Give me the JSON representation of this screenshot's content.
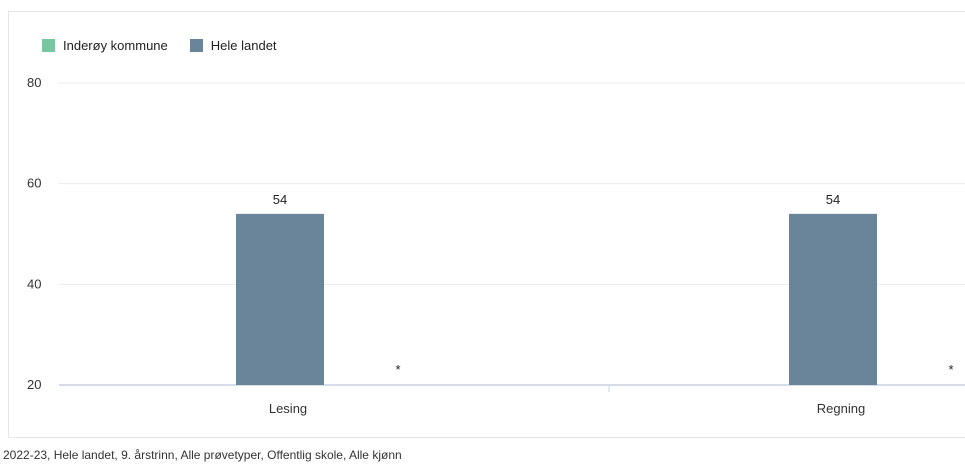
{
  "chart_data": {
    "type": "bar",
    "title": "",
    "xlabel": "",
    "ylabel": "",
    "categories": [
      "Lesing",
      "Regning"
    ],
    "ylim": [
      20,
      80
    ],
    "yticks": [
      20,
      40,
      60,
      80
    ],
    "grid": true,
    "legend_position": "top-left",
    "series": [
      {
        "name": "Inderøy kommune",
        "color": "#79c7a1",
        "values": [
          null,
          null
        ],
        "labels": [
          "*",
          "*"
        ]
      },
      {
        "name": "Hele landet",
        "color": "#6a8599",
        "values": [
          54,
          54
        ],
        "labels": [
          "54",
          "54"
        ]
      }
    ]
  },
  "footnote": "2022-23, Hele landet, 9. årstrinn, Alle prøvetyper, Offentlig skole, Alle kjønn"
}
